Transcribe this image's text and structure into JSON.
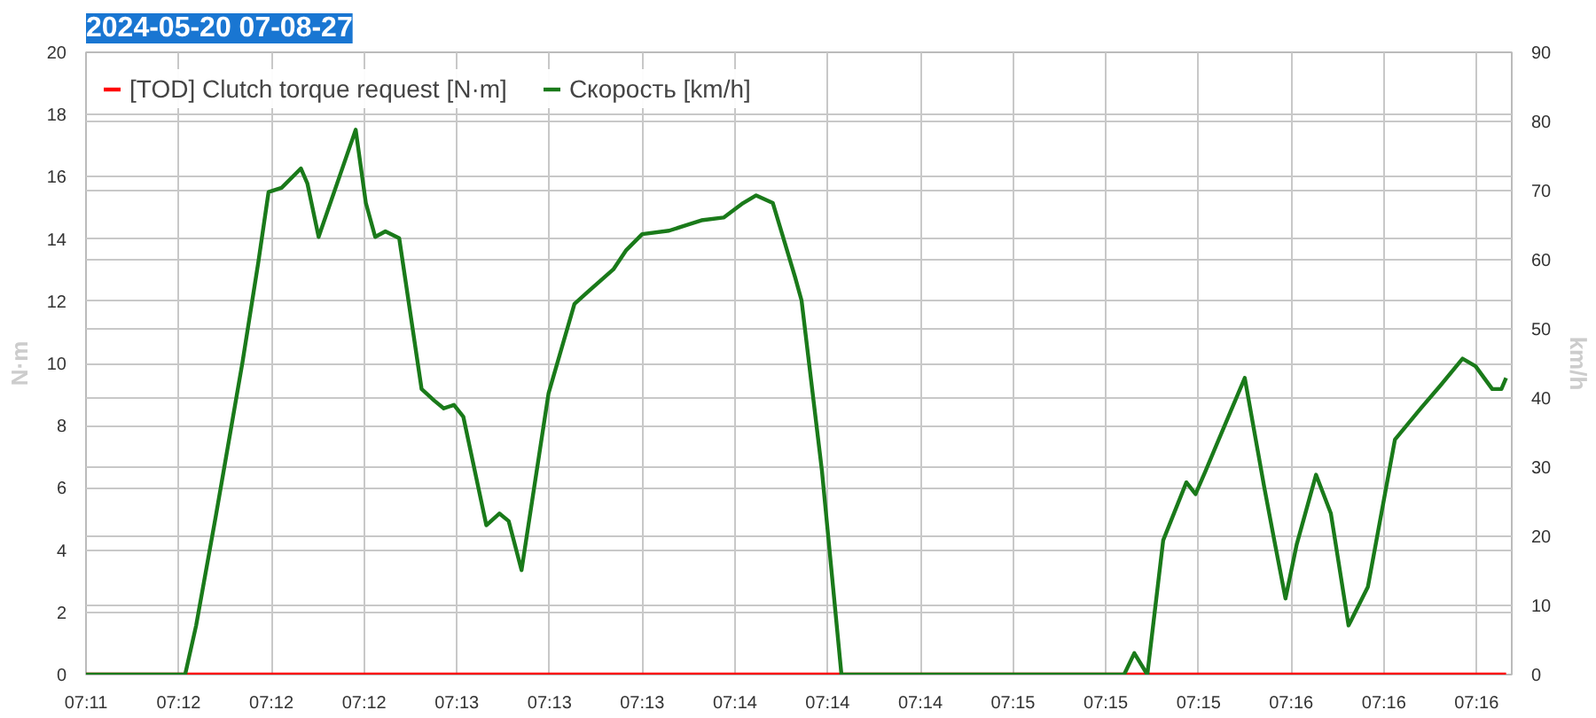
{
  "chart_data": {
    "type": "line",
    "title": "2024-05-20 07-08-27",
    "ylabel": "N·m",
    "y2label": "km/h",
    "xlim": [
      7.18889,
      7.27433
    ],
    "xticks": [
      {
        "value": 7.18889,
        "label": "07:11"
      },
      {
        "value": 7.19444,
        "label": "07:12"
      },
      {
        "value": 7.2,
        "label": "07:12"
      },
      {
        "value": 7.20556,
        "label": "07:12"
      },
      {
        "value": 7.21111,
        "label": "07:13"
      },
      {
        "value": 7.21667,
        "label": "07:13"
      },
      {
        "value": 7.22222,
        "label": "07:13"
      },
      {
        "value": 7.22778,
        "label": "07:14"
      },
      {
        "value": 7.23333,
        "label": "07:14"
      },
      {
        "value": 7.23889,
        "label": "07:14"
      },
      {
        "value": 7.24444,
        "label": "07:15"
      },
      {
        "value": 7.25,
        "label": "07:15"
      },
      {
        "value": 7.25556,
        "label": "07:15"
      },
      {
        "value": 7.26111,
        "label": "07:16"
      },
      {
        "value": 7.26667,
        "label": "07:16"
      },
      {
        "value": 7.27222,
        "label": "07:16"
      }
    ],
    "ylim": [
      0,
      20
    ],
    "yticks": [
      0,
      2,
      4,
      6,
      8,
      10,
      12,
      14,
      16,
      18,
      20
    ],
    "y2lim": [
      0,
      90
    ],
    "y2ticks": [
      0,
      10,
      20,
      30,
      40,
      50,
      60,
      70,
      80,
      90
    ],
    "grid": true,
    "legend": "top left",
    "line_style": "solid",
    "series": [
      {
        "name": "[TOD] Clutch torque request [N·m]",
        "color": "#ff0000",
        "x": [
          7.18889,
          7.27399
        ],
        "values": [
          0,
          0
        ]
      },
      {
        "name": "Скорость [km/h]",
        "color": "#1a7a1a",
        "axis": "y2",
        "x": [
          7.18889,
          7.19483,
          7.19549,
          7.19666,
          7.19827,
          7.19922,
          7.19983,
          7.20061,
          7.20177,
          7.20216,
          7.20283,
          7.20505,
          7.20566,
          7.20622,
          7.20683,
          7.20766,
          7.209,
          7.20977,
          7.21033,
          7.21094,
          7.2115,
          7.21288,
          7.21366,
          7.21422,
          7.21499,
          7.21661,
          7.21816,
          7.21894,
          7.22049,
          7.22127,
          7.22222,
          7.22383,
          7.22577,
          7.2271,
          7.22827,
          7.22905,
          7.23005,
          7.23138,
          7.23177,
          7.23299,
          7.23416,
          7.2511,
          7.25171,
          7.25249,
          7.25344,
          7.25483,
          7.25538,
          7.25599,
          7.25677,
          7.25833,
          7.25949,
          7.2601,
          7.26077,
          7.26144,
          7.2626,
          7.26349,
          7.26455,
          7.26571,
          7.26733,
          7.26888,
          7.27005,
          7.27138,
          7.27216,
          7.27316,
          7.27371,
          7.27399
        ],
        "values": [
          0,
          0,
          7.1,
          22.8,
          45.2,
          59.7,
          69.8,
          70.4,
          73.2,
          71.0,
          63.3,
          78.8,
          68.2,
          63.3,
          64.1,
          63.1,
          41.3,
          39.6,
          38.5,
          39.0,
          37.3,
          21.6,
          23.3,
          22.2,
          15.1,
          40.7,
          53.6,
          55.3,
          58.6,
          61.4,
          63.7,
          64.2,
          65.7,
          66.1,
          68.2,
          69.3,
          68.2,
          57.5,
          54.1,
          29.5,
          0,
          0,
          3.1,
          0,
          19.4,
          27.8,
          26.1,
          29.5,
          34.0,
          42.9,
          27.2,
          19.4,
          11.0,
          18.8,
          28.9,
          23.3,
          7.1,
          12.7,
          34.0,
          38.5,
          41.8,
          45.7,
          44.6,
          41.3,
          41.3,
          42.9
        ]
      }
    ]
  }
}
